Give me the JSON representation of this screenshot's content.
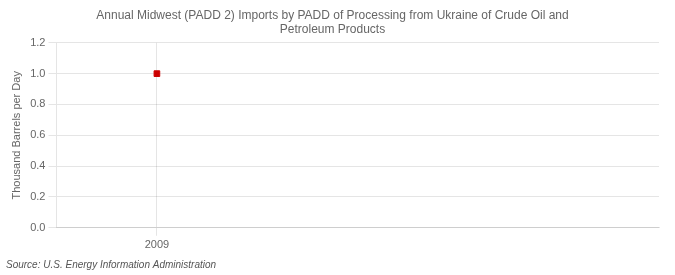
{
  "chart_data": {
    "type": "scatter",
    "title": [
      "Annual Midwest (PADD 2) Imports by PADD of Processing from Ukraine of Crude Oil and",
      "Petroleum Products"
    ],
    "ylabel": "Thousand Barrels per Day",
    "annotations": [
      "Source: U.S. Energy Information Administration"
    ],
    "x": [
      2009
    ],
    "values": [
      1.0
    ],
    "color": "#cc0000",
    "marker": "square",
    "xlim": [
      2008.4,
      2012.0
    ],
    "xticks": [
      2009
    ],
    "ylim": [
      0.0,
      1.2
    ],
    "yticks": [
      {
        "value": 0.0,
        "label": "0.0"
      },
      0.2,
      0.4,
      0.6,
      0.8,
      {
        "value": 1.0,
        "label": "1.0"
      },
      1.2
    ],
    "grid": true
  }
}
